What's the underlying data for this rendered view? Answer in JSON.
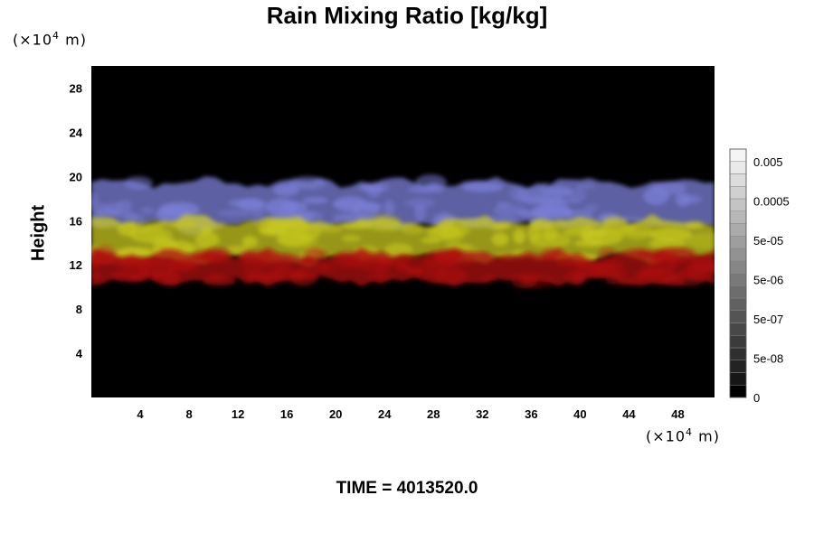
{
  "chart_data": {
    "type": "heatmap",
    "title": "Rain Mixing Ratio [kg/kg]",
    "ylabel": "Height",
    "xlabel": "",
    "x_unit": "(×10⁴ m)",
    "y_unit": "(×10⁴ m)",
    "xlim": [
      0,
      51
    ],
    "ylim": [
      0,
      30
    ],
    "x_ticks": [
      4,
      8,
      12,
      16,
      20,
      24,
      28,
      32,
      36,
      40,
      44,
      48
    ],
    "y_ticks": [
      4,
      8,
      12,
      16,
      20,
      24,
      28
    ],
    "background_color": "#000000",
    "layers": [
      {
        "color": "#7c80d8",
        "y_range": [
          15.5,
          19.5
        ],
        "description": "upper band"
      },
      {
        "color": "#c8c820",
        "y_range": [
          12.5,
          16.0
        ],
        "description": "middle band"
      },
      {
        "color": "#b01010",
        "y_range": [
          10.5,
          13.0
        ],
        "description": "lower band"
      }
    ],
    "colorbar": {
      "labels": [
        "0.005",
        "0.0005",
        "5e-05",
        "5e-06",
        "5e-07",
        "5e-08",
        "0"
      ],
      "levels": 20,
      "colors": [
        "#000000",
        "#ffffff"
      ]
    }
  },
  "footer": "TIME = 4013520.0"
}
